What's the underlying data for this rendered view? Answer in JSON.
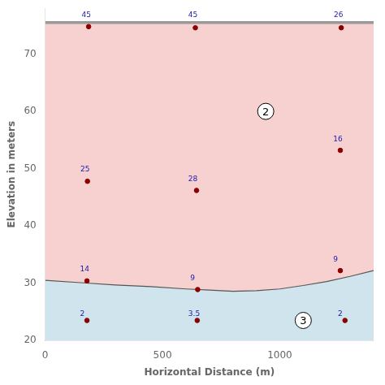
{
  "chart_data": {
    "type": "line",
    "xlabel": "Horizontal Distance (m)",
    "ylabel": "Elevation in meters",
    "xlim": [
      0,
      1400
    ],
    "ylim": [
      20,
      78
    ],
    "xticks": [
      0,
      500,
      1000
    ],
    "yticks": [
      20,
      30,
      40,
      50,
      60,
      70
    ],
    "grid": false,
    "x": [
      0,
      150,
      300,
      450,
      600,
      700,
      800,
      900,
      1000,
      1100,
      1200,
      1300,
      1400
    ],
    "values": [
      30.5,
      30.1,
      29.7,
      29.4,
      29.0,
      28.8,
      28.6,
      28.7,
      29.0,
      29.6,
      30.3,
      31.2,
      32.2
    ],
    "color": "#555555",
    "layers": [
      {
        "label": "2",
        "label_x": 940,
        "label_y": 60,
        "upper": 75.5,
        "color": "#f7d0d0",
        "edge_color": "#999999"
      },
      {
        "label": "3",
        "label_x": 1100,
        "label_y": 23.5,
        "lower": 20,
        "color": "#d0e4ee"
      }
    ],
    "label_color": "#1a1aaa",
    "point_color": "#8B0000",
    "annotations": [
      {
        "label": "45",
        "x": 155,
        "y": 76.2,
        "point_x": 185,
        "point_y": 74.8
      },
      {
        "label": "45",
        "x": 610,
        "y": 76.2,
        "point_x": 640,
        "point_y": 74.6
      },
      {
        "label": "26",
        "x": 1230,
        "y": 76.2,
        "point_x": 1262,
        "point_y": 74.6
      },
      {
        "label": "25",
        "x": 150,
        "y": 49.2,
        "point_x": 180,
        "point_y": 47.8
      },
      {
        "label": "28",
        "x": 610,
        "y": 47.5,
        "point_x": 645,
        "point_y": 46.2
      },
      {
        "label": "16",
        "x": 1228,
        "y": 54.5,
        "point_x": 1258,
        "point_y": 53.2
      },
      {
        "label": "14",
        "x": 148,
        "y": 31.8,
        "point_x": 178,
        "point_y": 30.4
      },
      {
        "label": "9",
        "x": 618,
        "y": 30.2,
        "point_x": 650,
        "point_y": 28.9
      },
      {
        "label": "9",
        "x": 1228,
        "y": 33.5,
        "point_x": 1258,
        "point_y": 32.2
      },
      {
        "label": "2",
        "x": 148,
        "y": 24.0,
        "point_x": 178,
        "point_y": 23.5
      },
      {
        "label": "3.5",
        "x": 610,
        "y": 24.0,
        "point_x": 648,
        "point_y": 23.5
      },
      {
        "label": "2",
        "x": 1248,
        "y": 24.0,
        "point_x": 1278,
        "point_y": 23.5
      }
    ]
  }
}
